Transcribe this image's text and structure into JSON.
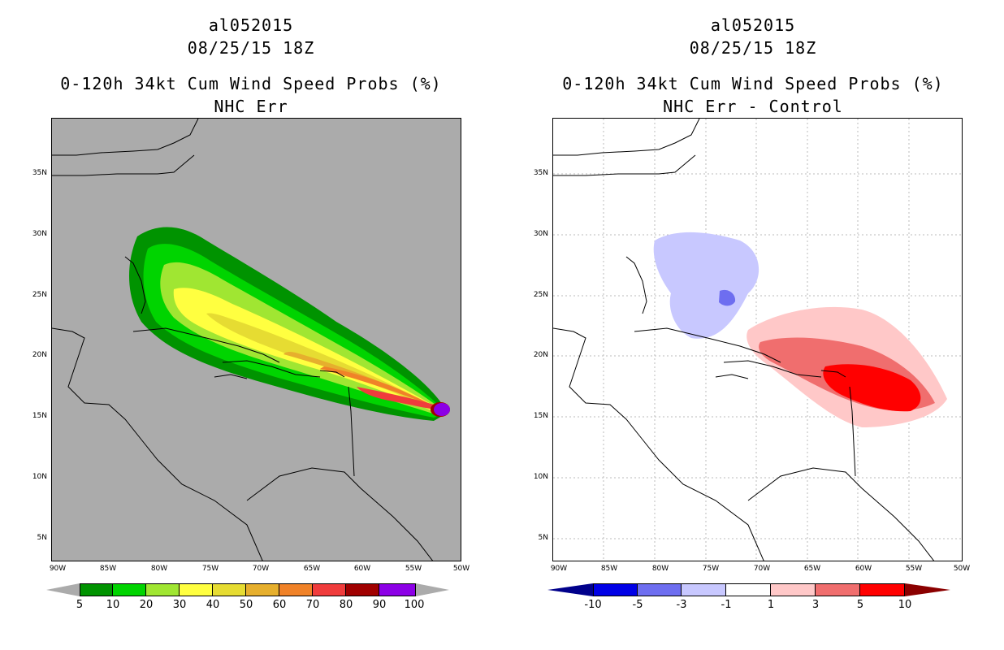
{
  "left_panel": {
    "storm_id": "al052015",
    "date": "08/25/15 18Z",
    "product": "0-120h 34kt Cum Wind Speed Probs (%)",
    "subtitle": "NHC Err",
    "lat_labels": [
      "35N",
      "30N",
      "25N",
      "20N",
      "15N",
      "10N",
      "5N"
    ],
    "lon_labels": [
      "90W",
      "85W",
      "80W",
      "75W",
      "70W",
      "65W",
      "60W",
      "55W",
      "50W"
    ],
    "colorbar": {
      "labels": [
        "5",
        "10",
        "20",
        "30",
        "40",
        "50",
        "60",
        "70",
        "80",
        "90",
        "100"
      ],
      "colors": [
        "#009300",
        "#00d400",
        "#a0e632",
        "#ffff40",
        "#e6dc32",
        "#e6af2d",
        "#f08228",
        "#f03c3c",
        "#a00000",
        "#8c00e6"
      ],
      "arrow_color": "#ababab",
      "units": "%"
    },
    "map_background": "#ababab"
  },
  "right_panel": {
    "storm_id": "al052015",
    "date": "08/25/15 18Z",
    "product": "0-120h 34kt Cum Wind Speed Probs (%)",
    "subtitle": "NHC Err - Control",
    "lat_labels": [
      "35N",
      "30N",
      "25N",
      "20N",
      "15N",
      "10N",
      "5N"
    ],
    "lon_labels": [
      "90W",
      "85W",
      "80W",
      "75W",
      "70W",
      "65W",
      "60W",
      "55W",
      "50W"
    ],
    "colorbar": {
      "labels": [
        "-10",
        "-5",
        "-3",
        "-1",
        "1",
        "3",
        "5",
        "10"
      ],
      "colors": [
        "#0000e6",
        "#6e6ef0",
        "#c8c8ff",
        "#ffffff",
        "#ffc8c8",
        "#f06e6e",
        "#ff0000"
      ],
      "low_arrow_color": "#00008b",
      "high_arrow_color": "#8b0000"
    },
    "map_background": "#ffffff"
  }
}
